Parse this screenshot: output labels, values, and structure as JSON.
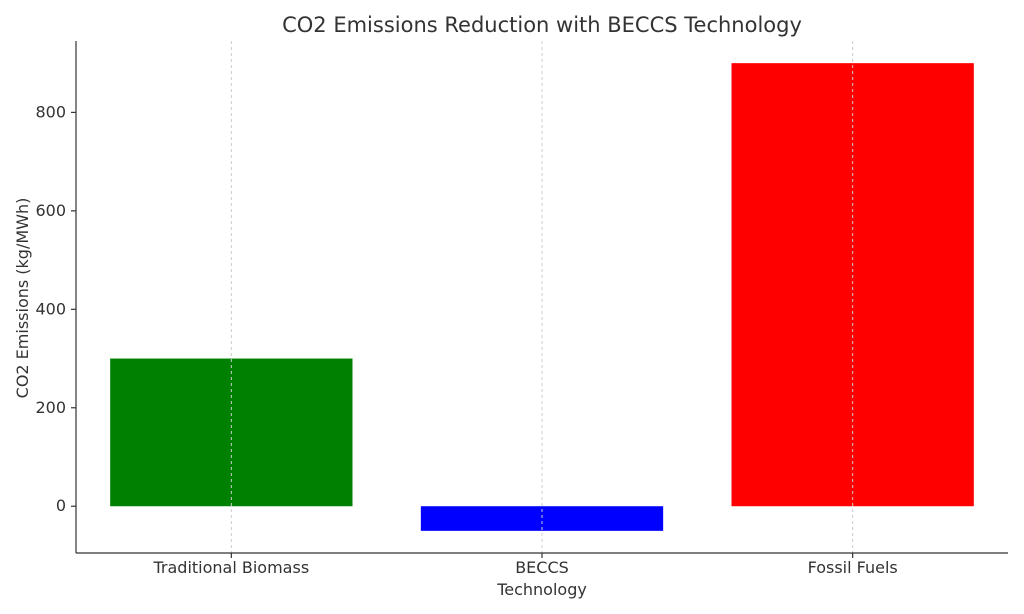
{
  "chart_data": {
    "type": "bar",
    "title": "CO2 Emissions Reduction with BECCS Technology",
    "xlabel": "Technology",
    "ylabel": "CO2 Emissions (kg/MWh)",
    "categories": [
      "Traditional Biomass",
      "BECCS",
      "Fossil Fuels"
    ],
    "values": [
      300,
      -50,
      900
    ],
    "colors": [
      "#008000",
      "#0000ff",
      "#ff0000"
    ],
    "ylim": [
      -95,
      945
    ],
    "yticks": [
      0,
      200,
      400,
      600,
      800
    ],
    "grid": "vertical dashed",
    "legend": "none"
  }
}
